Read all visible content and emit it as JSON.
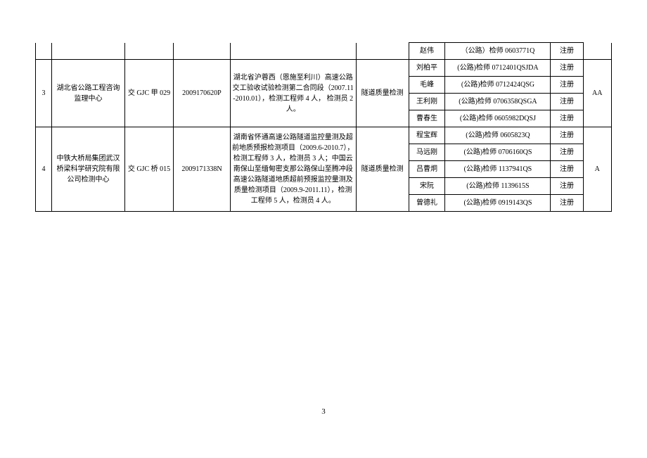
{
  "page_number": "3",
  "row_stub": {
    "person": "赵伟",
    "qual": "（公路）检师 0603771Q",
    "reg": "注册"
  },
  "groups": [
    {
      "idx": "3",
      "org": "湖北省公路工程咨询监理中心",
      "cert": "交 GJC 甲 029",
      "certno": "2009170620P",
      "project": "湖北省沪蓉西（恩施至利川）高速公路交工验收试验检测第二合同段（2007.11-2010.01），检测工程师 4 人，  检测员 2 人。",
      "category": "隧道质量检测",
      "grade": "AA",
      "people": [
        {
          "name": "刘柏平",
          "qual": "(公路)检师 0712401QSJDA",
          "reg": "注册"
        },
        {
          "name": "毛峰",
          "qual": "(公路)检师 0712424QSG",
          "reg": "注册"
        },
        {
          "name": "王利刚",
          "qual": "(公路)检师 0706358QSGA",
          "reg": "注册"
        },
        {
          "name": "曹春生",
          "qual": "(公路)检师 0605982DQSJ",
          "reg": "注册"
        }
      ]
    },
    {
      "idx": "4",
      "org": "中铁大桥局集团武汉桥梁科学研究院有限公司检测中心",
      "cert": "交 GJC 桥 015",
      "certno": "2009171338N",
      "project": "湖南省怀通高速公路隧道监控量测及超前地质预报检测项目（2009.6-2010.7），检测工程师 3 人，检测员 3 人；中国云南保山至缅甸密支那公路保山至腾冲段高速公路隧道地质超前预报监控量测及质量检测项目（2009.9-2011.11），检测工程师 5 人，检测员 4 人。",
      "category": "隧道质量检测",
      "grade": "A",
      "people": [
        {
          "name": "程宝辉",
          "qual": "(公路)检师 0605823Q",
          "reg": "注册"
        },
        {
          "name": "马远刚",
          "qual": "(公路)检师 0706160QS",
          "reg": "注册"
        },
        {
          "name": "吕曹炯",
          "qual": "(公路)检师 1137941QS",
          "reg": "注册"
        },
        {
          "name": "宋阮",
          "qual": "(公路)检师 1139615S",
          "reg": "注册"
        },
        {
          "name": "曾德礼",
          "qual": "(公路)检师 0919143QS",
          "reg": "注册"
        }
      ]
    }
  ]
}
